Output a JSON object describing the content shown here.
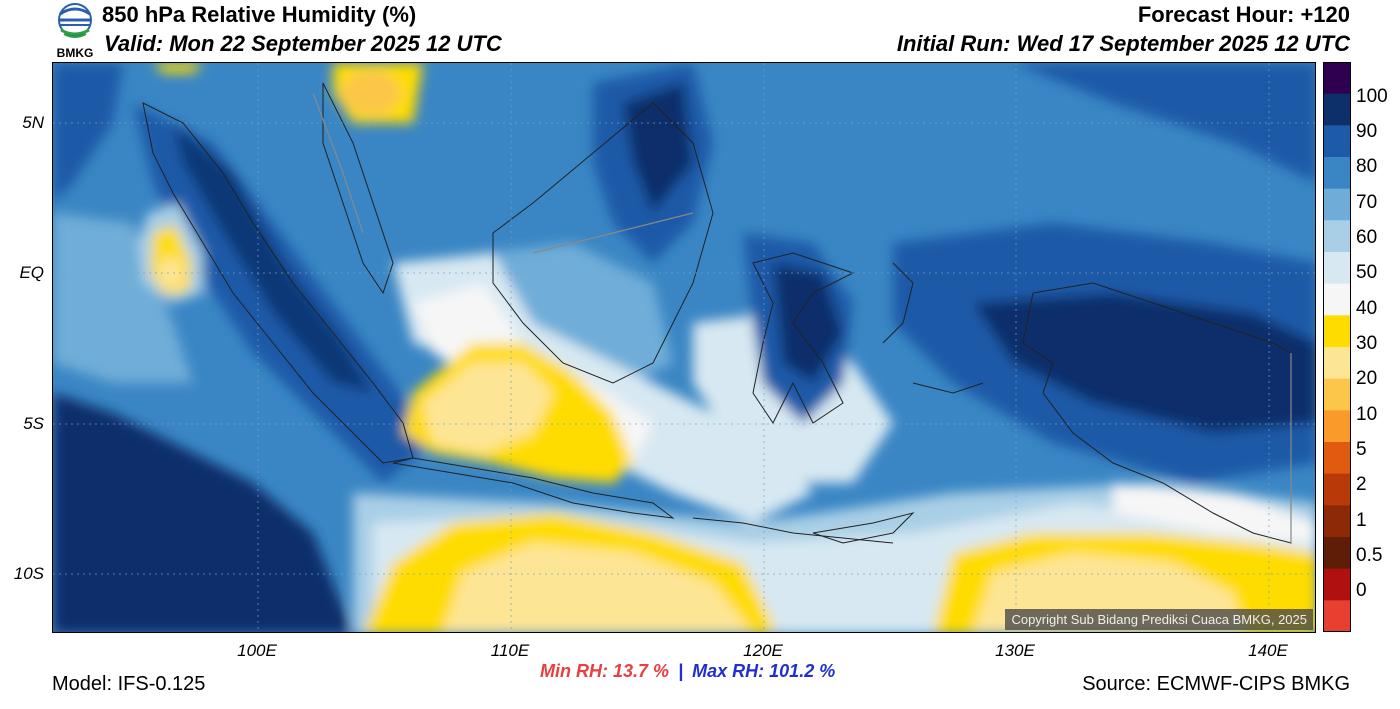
{
  "header": {
    "title": "850 hPa Relative Humidity (%)",
    "valid": "Valid: Mon 22 September 2025 12 UTC",
    "forecast_hour": "Forecast Hour: +120",
    "initial_run": "Initial Run: Wed 17 September 2025 12 UTC",
    "logo_text": "BMKG"
  },
  "map": {
    "lat_labels": [
      "5N",
      "EQ",
      "5S",
      "10S"
    ],
    "lon_labels": [
      "100E",
      "110E",
      "120E",
      "130E",
      "140E"
    ],
    "copyright": "Copyright Sub Bidang Prediksi Cuaca BMKG, 2025"
  },
  "colorbar": {
    "labels": [
      "100",
      "90",
      "80",
      "70",
      "60",
      "50",
      "40",
      "30",
      "20",
      "10",
      "5",
      "2",
      "1",
      "0.5",
      "0"
    ],
    "colors": [
      "#300050",
      "#0d2f6a",
      "#1d5aa8",
      "#3a86c4",
      "#6fadd8",
      "#a9cfe6",
      "#d7e8f2",
      "#f6f6f6",
      "#ffdc00",
      "#fde596",
      "#fcc64a",
      "#fa9a2a",
      "#e05a10",
      "#b83a08",
      "#8c2a08",
      "#5f1c06",
      "#b01010",
      "#e84030"
    ]
  },
  "footer": {
    "min_label": "Min RH:",
    "min_value": "13.7 %",
    "separator": "|",
    "max_label": "Max RH:",
    "max_value": "101.2 %",
    "model": "Model: IFS-0.125",
    "source": "Source: ECMWF-CIPS BMKG"
  },
  "colors": {
    "min": "#e84040",
    "max": "#2030d0"
  }
}
